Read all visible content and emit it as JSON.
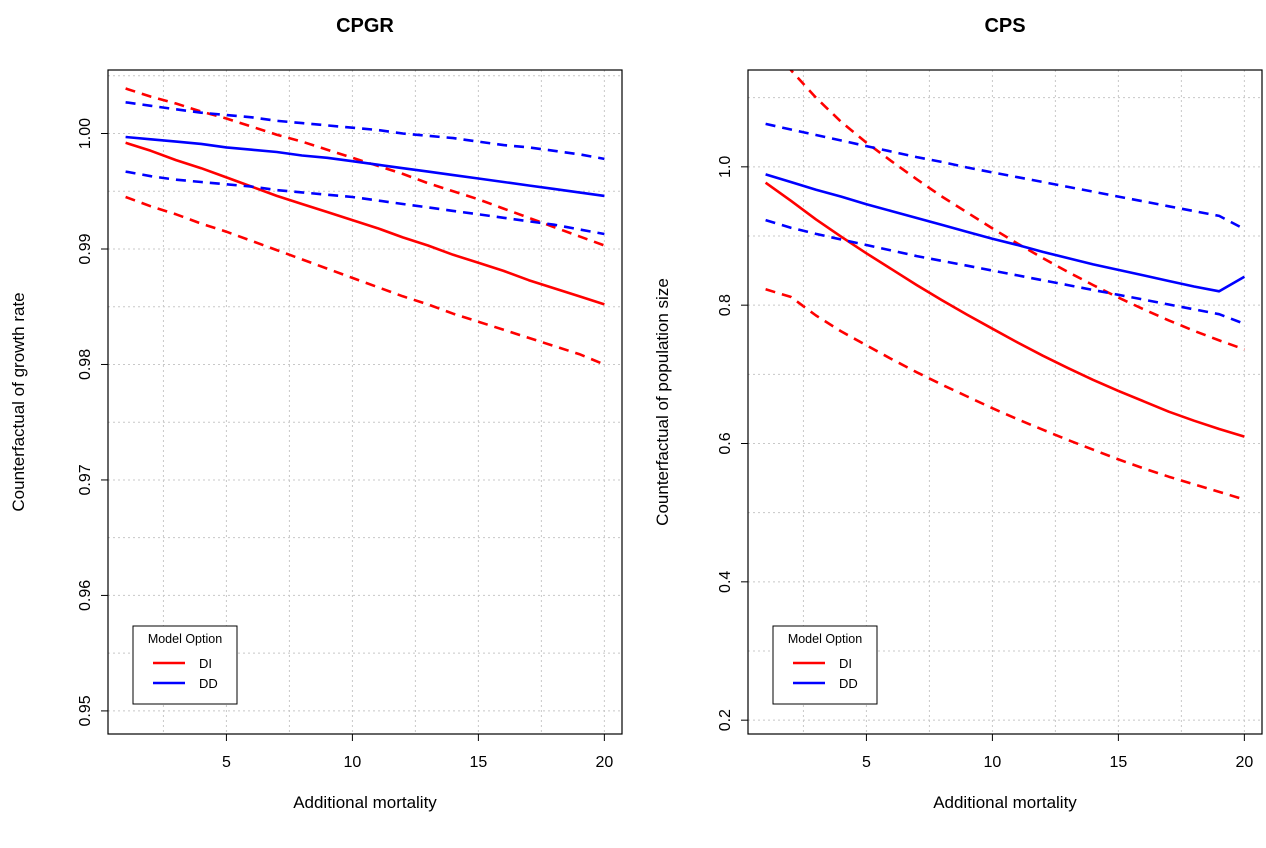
{
  "chart_data": [
    {
      "type": "line",
      "title": "CPGR",
      "xlabel": "Additional mortality",
      "ylabel": "Counterfactual of growth rate",
      "xlim": [
        0.3,
        20.7
      ],
      "ylim": [
        0.948,
        1.0055
      ],
      "xticks": [
        "5",
        "10",
        "15",
        "20"
      ],
      "yticks": [
        "0.95",
        "0.96",
        "0.97",
        "0.98",
        "0.99",
        "1.00"
      ],
      "grid": true,
      "legend": {
        "title": "Model Option",
        "placement": "bottom-left",
        "entries": [
          "DI",
          "DD"
        ]
      },
      "x": [
        1,
        2,
        3,
        4,
        5,
        6,
        7,
        8,
        9,
        10,
        11,
        12,
        13,
        14,
        15,
        16,
        17,
        18,
        19,
        20
      ],
      "series": [
        {
          "name": "DI",
          "role": "estimate",
          "color": "#ff0000",
          "dash": false,
          "values": [
            0.9992,
            0.9985,
            0.9977,
            0.997,
            0.9962,
            0.9954,
            0.9946,
            0.9939,
            0.9932,
            0.9925,
            0.9918,
            0.991,
            0.9903,
            0.9895,
            0.9888,
            0.9881,
            0.9873,
            0.9866,
            0.9859,
            0.9852
          ]
        },
        {
          "name": "DI",
          "role": "upper",
          "color": "#ff0000",
          "dash": true,
          "values": [
            1.0039,
            1.0032,
            1.0026,
            1.0019,
            1.0013,
            1.0006,
            0.9999,
            0.9993,
            0.9986,
            0.9979,
            0.9972,
            0.9965,
            0.9957,
            0.995,
            0.9943,
            0.9935,
            0.9927,
            0.9919,
            0.9911,
            0.9903
          ]
        },
        {
          "name": "DI",
          "role": "lower",
          "color": "#ff0000",
          "dash": true,
          "values": [
            0.9945,
            0.9937,
            0.993,
            0.9922,
            0.9915,
            0.9907,
            0.9899,
            0.9891,
            0.9883,
            0.9875,
            0.9867,
            0.9859,
            0.9852,
            0.9844,
            0.9837,
            0.983,
            0.9823,
            0.9816,
            0.9809,
            0.98
          ]
        },
        {
          "name": "DD",
          "role": "estimate",
          "color": "#0000ff",
          "dash": false,
          "values": [
            0.9997,
            0.9995,
            0.9993,
            0.9991,
            0.9988,
            0.9986,
            0.9984,
            0.9981,
            0.9979,
            0.9976,
            0.9973,
            0.997,
            0.9967,
            0.9964,
            0.9961,
            0.9958,
            0.9955,
            0.9952,
            0.9949,
            0.9946
          ]
        },
        {
          "name": "DD",
          "role": "upper",
          "color": "#0000ff",
          "dash": true,
          "values": [
            1.0027,
            1.0024,
            1.0021,
            1.0018,
            1.0016,
            1.0014,
            1.0011,
            1.0009,
            1.0007,
            1.0005,
            1.0003,
            1.0,
            0.9998,
            0.9996,
            0.9993,
            0.999,
            0.9988,
            0.9985,
            0.9982,
            0.9978
          ]
        },
        {
          "name": "DD",
          "role": "lower",
          "color": "#0000ff",
          "dash": true,
          "values": [
            0.9967,
            0.9963,
            0.996,
            0.9958,
            0.9956,
            0.9954,
            0.9951,
            0.9949,
            0.9947,
            0.9945,
            0.9942,
            0.9939,
            0.9936,
            0.9933,
            0.993,
            0.9927,
            0.9924,
            0.9921,
            0.9917,
            0.9913
          ]
        }
      ]
    },
    {
      "type": "line",
      "title": "CPS",
      "xlabel": "Additional mortality",
      "ylabel": "Counterfactual of population size",
      "xlim": [
        0.3,
        20.7
      ],
      "ylim": [
        0.18,
        1.14
      ],
      "xticks": [
        "5",
        "10",
        "15",
        "20"
      ],
      "yticks": [
        "0.2",
        "0.4",
        "0.6",
        "0.8",
        "1.0"
      ],
      "grid": true,
      "legend": {
        "title": "Model Option",
        "placement": "bottom-left",
        "entries": [
          "DI",
          "DD"
        ]
      },
      "x": [
        1,
        2,
        3,
        4,
        5,
        6,
        7,
        8,
        9,
        10,
        11,
        12,
        13,
        14,
        15,
        16,
        17,
        18,
        19,
        20
      ],
      "series": [
        {
          "name": "DI",
          "role": "estimate",
          "color": "#ff0000",
          "dash": false,
          "values": [
            0.977,
            0.951,
            0.924,
            0.899,
            0.875,
            0.852,
            0.829,
            0.807,
            0.786,
            0.766,
            0.746,
            0.727,
            0.709,
            0.692,
            0.676,
            0.661,
            0.646,
            0.633,
            0.621,
            0.61
          ]
        },
        {
          "name": "DI",
          "role": "upper",
          "color": "#ff0000",
          "dash": true,
          "values": [
            1.215,
            1.14,
            1.1,
            1.065,
            1.035,
            1.008,
            0.982,
            0.957,
            0.934,
            0.911,
            0.889,
            0.868,
            0.848,
            0.829,
            0.811,
            0.794,
            0.778,
            0.763,
            0.749,
            0.736
          ]
        },
        {
          "name": "DI",
          "role": "lower",
          "color": "#ff0000",
          "dash": true,
          "values": [
            0.823,
            0.812,
            0.785,
            0.762,
            0.742,
            0.722,
            0.703,
            0.685,
            0.668,
            0.651,
            0.635,
            0.62,
            0.605,
            0.591,
            0.577,
            0.564,
            0.552,
            0.541,
            0.53,
            0.519
          ]
        },
        {
          "name": "DD",
          "role": "estimate",
          "color": "#0000ff",
          "dash": false,
          "values": [
            0.989,
            0.978,
            0.967,
            0.957,
            0.946,
            0.936,
            0.926,
            0.916,
            0.906,
            0.896,
            0.887,
            0.877,
            0.868,
            0.859,
            0.851,
            0.843,
            0.835,
            0.827,
            0.82,
            0.841
          ]
        },
        {
          "name": "DD",
          "role": "upper",
          "color": "#0000ff",
          "dash": true,
          "values": [
            1.062,
            1.054,
            1.046,
            1.038,
            1.03,
            1.022,
            1.014,
            1.007,
            0.999,
            0.992,
            0.985,
            0.978,
            0.971,
            0.964,
            0.957,
            0.95,
            0.943,
            0.936,
            0.929,
            0.91
          ]
        },
        {
          "name": "DD",
          "role": "lower",
          "color": "#0000ff",
          "dash": true,
          "values": [
            0.923,
            0.912,
            0.903,
            0.895,
            0.887,
            0.879,
            0.871,
            0.864,
            0.857,
            0.85,
            0.843,
            0.836,
            0.829,
            0.822,
            0.815,
            0.808,
            0.801,
            0.794,
            0.787,
            0.773
          ]
        }
      ]
    }
  ]
}
